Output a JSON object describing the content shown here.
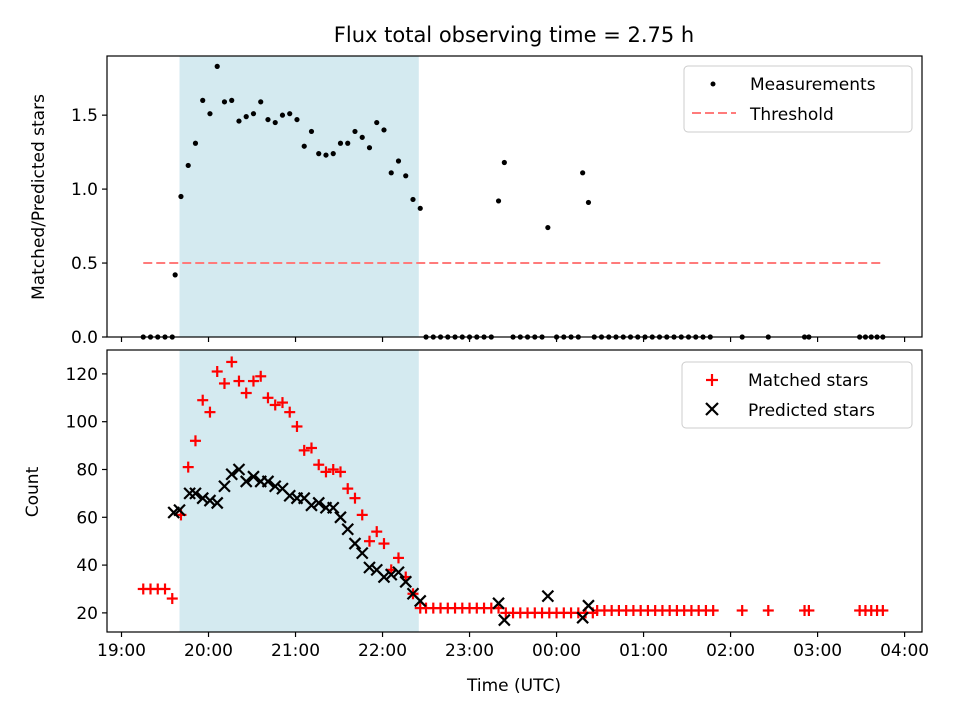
{
  "figure": {
    "title": "Flux total observing time = 2.75 h",
    "xlabel": "Time (UTC)",
    "top_ylabel": "Matched/Predicted stars",
    "bottom_ylabel": "Count"
  },
  "chart_data": [
    {
      "type": "scatter",
      "panel": "top",
      "title": "Flux total observing time = 2.75 h",
      "xlabel": "",
      "ylabel": "Matched/Predicted stars",
      "xlim": [
        "18:50",
        "04:12"
      ],
      "ylim": [
        0,
        1.9
      ],
      "x_ticks": [
        "19:00",
        "20:00",
        "21:00",
        "22:00",
        "23:00",
        "00:00",
        "01:00",
        "02:00",
        "03:00",
        "04:00"
      ],
      "y_ticks": [
        0.0,
        0.5,
        1.0,
        1.5
      ],
      "y_tick_labels": [
        "0.0",
        "0.5",
        "1.0",
        "1.5"
      ],
      "shaded_region": {
        "x": [
          "19:40",
          "22:25"
        ],
        "color": "#d4eaf0"
      },
      "legend": {
        "position": "top-right",
        "entries": [
          "Measurements",
          "Threshold"
        ]
      },
      "series": [
        {
          "name": "Measurements",
          "marker": "dot",
          "color": "#000000",
          "points": [
            [
              "19:15",
              0
            ],
            [
              "19:20",
              0
            ],
            [
              "19:25",
              0
            ],
            [
              "19:30",
              0
            ],
            [
              "19:35",
              0
            ],
            [
              "19:37",
              0.42
            ],
            [
              "19:41",
              0.95
            ],
            [
              "19:46",
              1.16
            ],
            [
              "19:51",
              1.31
            ],
            [
              "19:56",
              1.6
            ],
            [
              "20:01",
              1.51
            ],
            [
              "20:06",
              1.83
            ],
            [
              "20:11",
              1.59
            ],
            [
              "20:16",
              1.6
            ],
            [
              "20:21",
              1.46
            ],
            [
              "20:26",
              1.49
            ],
            [
              "20:31",
              1.51
            ],
            [
              "20:36",
              1.59
            ],
            [
              "20:41",
              1.47
            ],
            [
              "20:46",
              1.45
            ],
            [
              "20:51",
              1.5
            ],
            [
              "20:56",
              1.51
            ],
            [
              "21:01",
              1.47
            ],
            [
              "21:06",
              1.29
            ],
            [
              "21:11",
              1.39
            ],
            [
              "21:16",
              1.24
            ],
            [
              "21:21",
              1.23
            ],
            [
              "21:26",
              1.24
            ],
            [
              "21:31",
              1.31
            ],
            [
              "21:36",
              1.31
            ],
            [
              "21:41",
              1.39
            ],
            [
              "21:46",
              1.35
            ],
            [
              "21:51",
              1.28
            ],
            [
              "21:56",
              1.45
            ],
            [
              "22:01",
              1.4
            ],
            [
              "22:06",
              1.11
            ],
            [
              "22:11",
              1.19
            ],
            [
              "22:16",
              1.09
            ],
            [
              "22:21",
              0.93
            ],
            [
              "22:26",
              0.87
            ],
            [
              "22:30",
              0
            ],
            [
              "22:35",
              0
            ],
            [
              "22:40",
              0
            ],
            [
              "22:45",
              0
            ],
            [
              "22:50",
              0
            ],
            [
              "22:55",
              0
            ],
            [
              "23:00",
              0
            ],
            [
              "23:05",
              0
            ],
            [
              "23:10",
              0
            ],
            [
              "23:15",
              0
            ],
            [
              "23:20",
              0.92
            ],
            [
              "23:24",
              1.18
            ],
            [
              "23:30",
              0
            ],
            [
              "23:35",
              0
            ],
            [
              "23:40",
              0
            ],
            [
              "23:45",
              0
            ],
            [
              "23:50",
              0
            ],
            [
              "23:54",
              0.74
            ],
            [
              "00:00",
              0
            ],
            [
              "00:05",
              0
            ],
            [
              "00:10",
              0
            ],
            [
              "00:15",
              0
            ],
            [
              "00:18",
              1.11
            ],
            [
              "00:22",
              0.91
            ],
            [
              "00:26",
              0
            ],
            [
              "00:31",
              0
            ],
            [
              "00:36",
              0
            ],
            [
              "00:41",
              0
            ],
            [
              "00:46",
              0
            ],
            [
              "00:51",
              0
            ],
            [
              "00:56",
              0
            ],
            [
              "01:01",
              0
            ],
            [
              "01:06",
              0
            ],
            [
              "01:11",
              0
            ],
            [
              "01:16",
              0
            ],
            [
              "01:21",
              0
            ],
            [
              "01:26",
              0
            ],
            [
              "01:31",
              0
            ],
            [
              "01:36",
              0
            ],
            [
              "01:41",
              0
            ],
            [
              "01:46",
              0
            ],
            [
              "02:08",
              0
            ],
            [
              "02:26",
              0
            ],
            [
              "02:51",
              0
            ],
            [
              "02:54",
              0
            ],
            [
              "03:29",
              0
            ],
            [
              "03:33",
              0
            ],
            [
              "03:37",
              0
            ],
            [
              "03:41",
              0
            ],
            [
              "03:45",
              0
            ]
          ]
        },
        {
          "name": "Threshold",
          "type": "line",
          "style": "dashed",
          "color": "#ff7b7b",
          "points": [
            [
              "19:15",
              0.5
            ],
            [
              "03:45",
              0.5
            ]
          ]
        }
      ]
    },
    {
      "type": "scatter",
      "panel": "bottom",
      "xlabel": "Time (UTC)",
      "ylabel": "Count",
      "xlim": [
        "18:50",
        "04:12"
      ],
      "ylim": [
        12,
        130
      ],
      "x_ticks": [
        "19:00",
        "20:00",
        "21:00",
        "22:00",
        "23:00",
        "00:00",
        "01:00",
        "02:00",
        "03:00",
        "04:00"
      ],
      "x_tick_labels": [
        "19:00",
        "20:00",
        "21:00",
        "22:00",
        "23:00",
        "00:00",
        "01:00",
        "02:00",
        "03:00",
        "04:00"
      ],
      "y_ticks": [
        20,
        40,
        60,
        80,
        100,
        120
      ],
      "y_tick_labels": [
        "20",
        "40",
        "60",
        "80",
        "100",
        "120"
      ],
      "shaded_region": {
        "x": [
          "19:40",
          "22:25"
        ],
        "color": "#d4eaf0"
      },
      "legend": {
        "position": "top-right",
        "entries": [
          "Matched stars",
          "Predicted stars"
        ]
      },
      "series": [
        {
          "name": "Matched stars",
          "marker": "plus",
          "color": "#ff0000",
          "points": [
            [
              "19:15",
              30
            ],
            [
              "19:20",
              30
            ],
            [
              "19:25",
              30
            ],
            [
              "19:30",
              30
            ],
            [
              "19:35",
              26
            ],
            [
              "19:41",
              61
            ],
            [
              "19:46",
              81
            ],
            [
              "19:51",
              92
            ],
            [
              "19:56",
              109
            ],
            [
              "20:01",
              104
            ],
            [
              "20:06",
              121
            ],
            [
              "20:11",
              116
            ],
            [
              "20:16",
              125
            ],
            [
              "20:21",
              117
            ],
            [
              "20:26",
              112
            ],
            [
              "20:31",
              117
            ],
            [
              "20:36",
              119
            ],
            [
              "20:41",
              110
            ],
            [
              "20:46",
              107
            ],
            [
              "20:51",
              108
            ],
            [
              "20:56",
              104
            ],
            [
              "21:01",
              98
            ],
            [
              "21:06",
              88
            ],
            [
              "21:11",
              89
            ],
            [
              "21:16",
              82
            ],
            [
              "21:21",
              79
            ],
            [
              "21:26",
              80
            ],
            [
              "21:31",
              79
            ],
            [
              "21:36",
              72
            ],
            [
              "21:41",
              68
            ],
            [
              "21:46",
              61
            ],
            [
              "21:51",
              50
            ],
            [
              "21:56",
              54
            ],
            [
              "22:01",
              49
            ],
            [
              "22:06",
              38
            ],
            [
              "22:11",
              43
            ],
            [
              "22:16",
              35
            ],
            [
              "22:21",
              28
            ],
            [
              "22:26",
              22
            ],
            [
              "22:30",
              22
            ],
            [
              "22:35",
              22
            ],
            [
              "22:40",
              22
            ],
            [
              "22:45",
              22
            ],
            [
              "22:50",
              22
            ],
            [
              "22:55",
              22
            ],
            [
              "23:00",
              22
            ],
            [
              "23:05",
              22
            ],
            [
              "23:10",
              22
            ],
            [
              "23:15",
              22
            ],
            [
              "23:20",
              22
            ],
            [
              "23:25",
              20
            ],
            [
              "23:30",
              20
            ],
            [
              "23:35",
              20
            ],
            [
              "23:40",
              20
            ],
            [
              "23:45",
              20
            ],
            [
              "23:50",
              20
            ],
            [
              "23:55",
              20
            ],
            [
              "00:00",
              20
            ],
            [
              "00:05",
              20
            ],
            [
              "00:10",
              20
            ],
            [
              "00:15",
              20
            ],
            [
              "00:20",
              20
            ],
            [
              "00:25",
              20
            ],
            [
              "00:28",
              21
            ],
            [
              "00:33",
              21
            ],
            [
              "00:38",
              21
            ],
            [
              "00:43",
              21
            ],
            [
              "00:48",
              21
            ],
            [
              "00:53",
              21
            ],
            [
              "00:58",
              21
            ],
            [
              "01:03",
              21
            ],
            [
              "01:08",
              21
            ],
            [
              "01:13",
              21
            ],
            [
              "01:18",
              21
            ],
            [
              "01:23",
              21
            ],
            [
              "01:28",
              21
            ],
            [
              "01:33",
              21
            ],
            [
              "01:38",
              21
            ],
            [
              "01:43",
              21
            ],
            [
              "01:48",
              21
            ],
            [
              "02:08",
              21
            ],
            [
              "02:26",
              21
            ],
            [
              "02:51",
              21
            ],
            [
              "02:54",
              21
            ],
            [
              "03:29",
              21
            ],
            [
              "03:33",
              21
            ],
            [
              "03:37",
              21
            ],
            [
              "03:41",
              21
            ],
            [
              "03:45",
              21
            ]
          ]
        },
        {
          "name": "Predicted stars",
          "marker": "x",
          "color": "#000000",
          "points": [
            [
              "19:36",
              62
            ],
            [
              "19:40",
              63
            ],
            [
              "19:47",
              70
            ],
            [
              "19:51",
              70
            ],
            [
              "19:56",
              68
            ],
            [
              "20:01",
              67
            ],
            [
              "20:06",
              66
            ],
            [
              "20:11",
              73
            ],
            [
              "20:16",
              78
            ],
            [
              "20:21",
              80
            ],
            [
              "20:26",
              75
            ],
            [
              "20:31",
              77
            ],
            [
              "20:36",
              75
            ],
            [
              "20:41",
              75
            ],
            [
              "20:46",
              73
            ],
            [
              "20:51",
              72
            ],
            [
              "20:56",
              69
            ],
            [
              "21:01",
              68
            ],
            [
              "21:06",
              68
            ],
            [
              "21:11",
              65
            ],
            [
              "21:16",
              66
            ],
            [
              "21:21",
              64
            ],
            [
              "21:26",
              64
            ],
            [
              "21:31",
              60
            ],
            [
              "21:36",
              55
            ],
            [
              "21:41",
              49
            ],
            [
              "21:46",
              45
            ],
            [
              "21:51",
              39
            ],
            [
              "21:56",
              38
            ],
            [
              "22:01",
              35
            ],
            [
              "22:06",
              36
            ],
            [
              "22:11",
              37
            ],
            [
              "22:16",
              33
            ],
            [
              "22:21",
              28
            ],
            [
              "22:26",
              25
            ],
            [
              "23:20",
              24
            ],
            [
              "23:24",
              17
            ],
            [
              "23:54",
              27
            ],
            [
              "00:18",
              18
            ],
            [
              "00:22",
              23
            ]
          ]
        }
      ]
    }
  ]
}
